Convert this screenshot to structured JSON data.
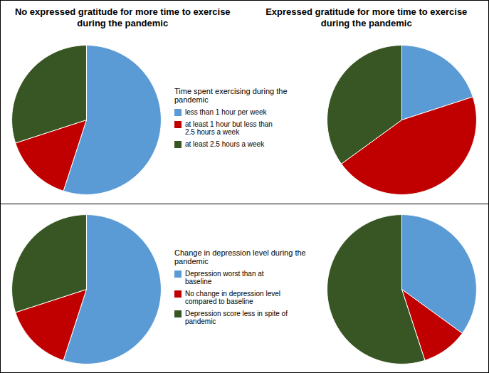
{
  "chart_data": [
    {
      "type": "pie",
      "title": "No expressed gratitude for more time to exercise during the pandemic",
      "legend_title": "Time spent exercising during the pandemic",
      "categories": [
        "less than 1 hour per week",
        "at least 1 hour but less than\n2.5 hours a week",
        "at least 2.5 hours a week"
      ],
      "values": [
        55,
        15,
        30
      ],
      "colors": [
        "#5B9BD5",
        "#C00000",
        "#375623"
      ]
    },
    {
      "type": "pie",
      "title": "Expressed gratitude for more time to exercise during the pandemic",
      "categories": [
        "less than 1 hour per week",
        "at least 1 hour but less than\n2.5 hours a week",
        "at least 2.5 hours a week"
      ],
      "values": [
        20,
        45,
        35
      ],
      "colors": [
        "#5B9BD5",
        "#C00000",
        "#375623"
      ]
    },
    {
      "type": "pie",
      "legend_title": "Change in depression level during the pandemic",
      "categories": [
        "Depression worst than at\nbaseline",
        "No change in depression level\ncompared to baseline",
        "Depression score less in spite of\npandemic"
      ],
      "values": [
        55,
        15,
        30
      ],
      "colors": [
        "#5B9BD5",
        "#C00000",
        "#375623"
      ]
    },
    {
      "type": "pie",
      "categories": [
        "Depression worst than at\nbaseline",
        "No change in depression level\ncompared to baseline",
        "Depression score less in spite of\npandemic"
      ],
      "values": [
        35,
        10,
        55
      ],
      "colors": [
        "#5B9BD5",
        "#C00000",
        "#375623"
      ]
    }
  ]
}
